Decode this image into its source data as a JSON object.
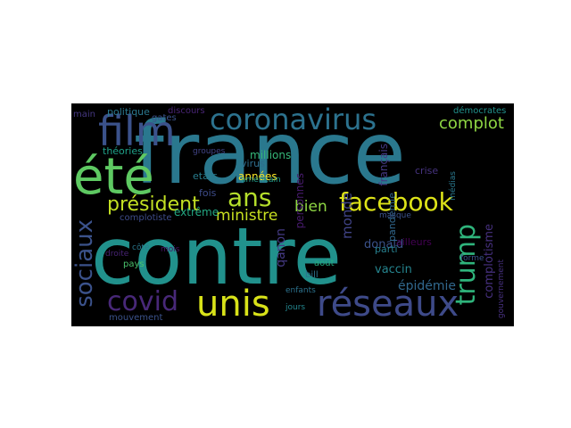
{
  "colors": {
    "background": "#000000",
    "page": "#ffffff",
    "palette": [
      "#440154",
      "#3b528b",
      "#21918c",
      "#5ec962",
      "#fde725"
    ]
  },
  "words": [
    {
      "text": "france",
      "color": "#2a788e"
    },
    {
      "text": "contre",
      "color": "#21918c"
    },
    {
      "text": "coronavirus",
      "color": "#2c728e"
    },
    {
      "text": "été",
      "color": "#5ec962"
    },
    {
      "text": "film",
      "color": "#3b528b"
    },
    {
      "text": "facebook",
      "color": "#dde318"
    },
    {
      "text": "unis",
      "color": "#d8e219"
    },
    {
      "text": "réseaux",
      "color": "#3e4a89"
    },
    {
      "text": "covid",
      "color": "#482878"
    },
    {
      "text": "ans",
      "color": "#b5de2b"
    },
    {
      "text": "président",
      "color": "#c2df23"
    },
    {
      "text": "trump",
      "color": "#2fb47c"
    },
    {
      "text": "sociaux",
      "color": "#3b528b"
    },
    {
      "text": "complot",
      "color": "#8fd744"
    },
    {
      "text": "ministre",
      "color": "#c8e020"
    },
    {
      "text": "bien",
      "color": "#8fd744"
    },
    {
      "text": "monde",
      "color": "#404387"
    },
    {
      "text": "qanon",
      "color": "#443a83"
    },
    {
      "text": "complotisme",
      "color": "#46307e"
    },
    {
      "text": "épidémie",
      "color": "#31688e"
    },
    {
      "text": "vaccin",
      "color": "#25848e"
    },
    {
      "text": "donald",
      "color": "#3b528b"
    },
    {
      "text": "millions",
      "color": "#35b779"
    },
    {
      "text": "personnes",
      "color": "#481c6e"
    },
    {
      "text": "français",
      "color": "#443983"
    },
    {
      "text": "crise",
      "color": "#46337f"
    },
    {
      "text": "années",
      "color": "#fde725"
    },
    {
      "text": "virus",
      "color": "#2e6e8e"
    },
    {
      "text": "etats",
      "color": "#287d8e"
    },
    {
      "text": "fois",
      "color": "#3e4c8a"
    },
    {
      "text": "extrême",
      "color": "#23a983"
    },
    {
      "text": "complotiste",
      "color": "#3e4c8a"
    },
    {
      "text": "politique",
      "color": "#2a788e"
    },
    {
      "text": "discours",
      "color": "#482475"
    },
    {
      "text": "gates",
      "color": "#3b528b"
    },
    {
      "text": "théories",
      "color": "#1fa088"
    },
    {
      "text": "main",
      "color": "#453781"
    },
    {
      "text": "démocrates",
      "color": "#21918c"
    },
    {
      "text": "pandémie",
      "color": "#31688e"
    },
    {
      "text": "parti",
      "color": "#277f8e"
    },
    {
      "text": "août",
      "color": "#26ad81"
    },
    {
      "text": "bill",
      "color": "#2c728e"
    },
    {
      "text": "ailleurs",
      "color": "#440154"
    },
    {
      "text": "mouvement",
      "color": "#3b528b"
    },
    {
      "text": "pays",
      "color": "#4ac16d"
    },
    {
      "text": "côté",
      "color": "#2a788e"
    },
    {
      "text": "mois",
      "color": "#471365"
    },
    {
      "text": "droite",
      "color": "#482475"
    },
    {
      "text": "jours",
      "color": "#24868e"
    },
    {
      "text": "enfants",
      "color": "#2c728e"
    },
    {
      "text": "masque",
      "color": "#3b528b"
    },
    {
      "text": "américain",
      "color": "#1f9a8a"
    },
    {
      "text": "médias",
      "color": "#2a788e"
    },
    {
      "text": "forme",
      "color": "#3b528b"
    },
    {
      "text": "groupes",
      "color": "#414487"
    },
    {
      "text": "gouvernement",
      "color": "#46307e"
    }
  ]
}
